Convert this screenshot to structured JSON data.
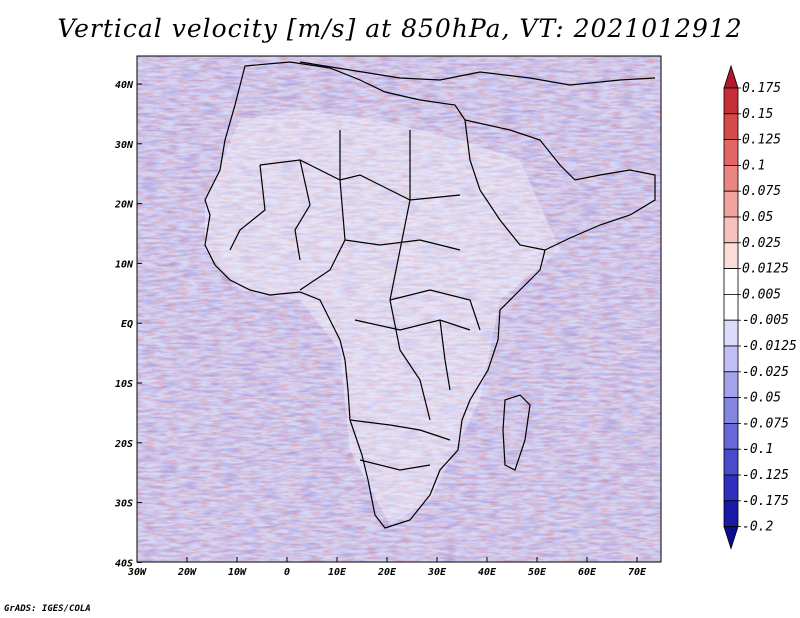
{
  "title": "Vertical velocity [m/s] at 850hPa, VT: 2021012912",
  "credit": "GrADS: IGES/COLA",
  "map": {
    "region": "Africa and surrounding oceans",
    "lon_ticks": [
      "30W",
      "20W",
      "10W",
      "0",
      "10E",
      "20E",
      "30E",
      "40E",
      "50E",
      "60E",
      "70E"
    ],
    "lat_ticks": [
      "40N",
      "30N",
      "20N",
      "10N",
      "EQ",
      "10S",
      "20S",
      "30S",
      "40S"
    ]
  },
  "colorbar": {
    "labels": [
      "0.175",
      "0.15",
      "0.125",
      "0.1",
      "0.075",
      "0.05",
      "0.025",
      "0.0125",
      "0.005",
      "-0.005",
      "-0.0125",
      "-0.025",
      "-0.05",
      "-0.075",
      "-0.1",
      "-0.125",
      "-0.175",
      "-0.2"
    ],
    "colors": [
      "#b2182b",
      "#c62f36",
      "#d64a4a",
      "#e26764",
      "#eb8582",
      "#f1a3a0",
      "#f6c0bd",
      "#fadcd9",
      "#ffffff",
      "#ffffff",
      "#dcdcfa",
      "#c0c0f4",
      "#a3a3ec",
      "#8585e2",
      "#6868d8",
      "#4a4acc",
      "#2f2fbe",
      "#1a1aa8",
      "#0c0c90"
    ]
  },
  "colors": {
    "positive": "#d64a4a",
    "negative": "#4a4acc",
    "land_outline": "#000000"
  }
}
